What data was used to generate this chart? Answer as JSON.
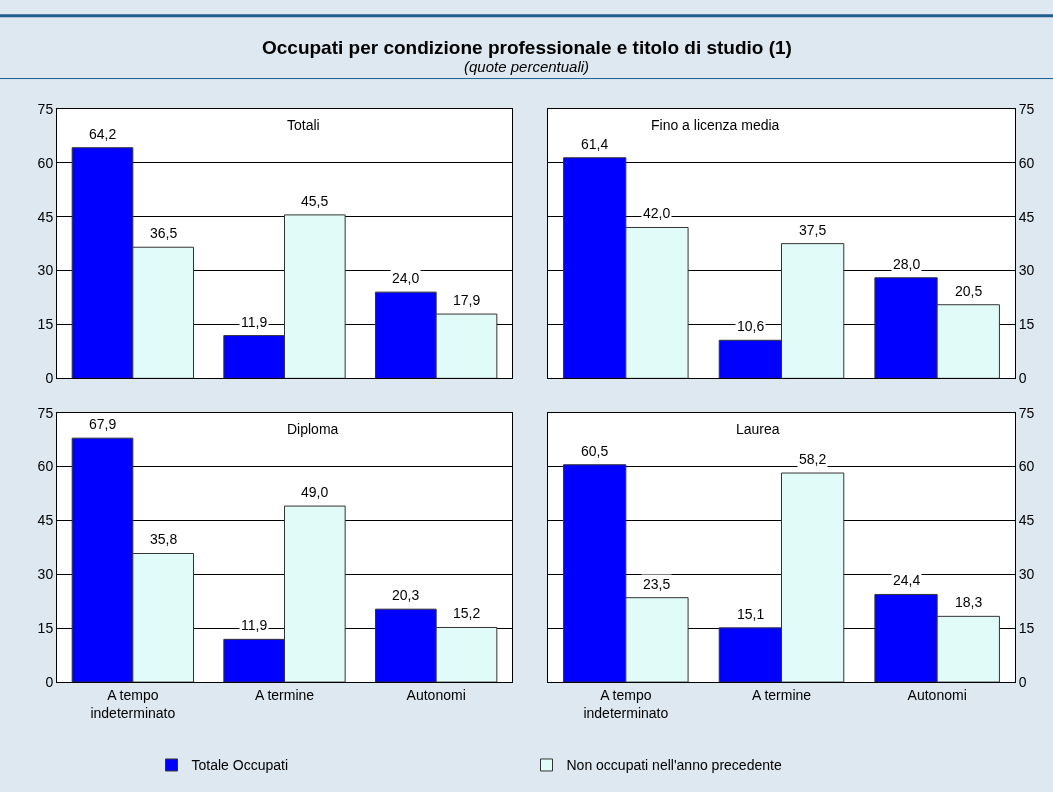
{
  "chart_data": [
    {
      "type": "bar",
      "title": "Totali",
      "annotations": [
        "Occupati per condizione professionale e titolo di studio (1)",
        "(quote percentuali)"
      ],
      "categories": [
        "A tempo\nindeterminato",
        "A termine",
        "Autonomi"
      ],
      "series": [
        {
          "name": "Totale Occupati",
          "color": "#0000ff",
          "values": [
            64.2,
            11.9,
            24.0
          ],
          "value_labels": [
            "64,2",
            "11,9",
            "24,0"
          ]
        },
        {
          "name": "Non occupati nell'anno precedente",
          "color": "#e0fbf8",
          "values": [
            36.5,
            45.5,
            17.9
          ],
          "value_labels": [
            "36,5",
            "45,5",
            "17,9"
          ]
        }
      ],
      "ylim": [
        0,
        75
      ],
      "yticks": [
        0,
        15,
        30,
        45,
        60,
        75
      ],
      "grid": "y",
      "legend": "bottom",
      "tick_labels": "y"
    },
    {
      "type": "bar",
      "title": "Fino a licenza media",
      "categories": [
        "A tempo\nindeterminato",
        "A termine",
        "Autonomi"
      ],
      "series": [
        {
          "name": "Totale Occupati",
          "color": "#0000ff",
          "values": [
            61.4,
            10.6,
            28.0
          ],
          "value_labels": [
            "61,4",
            "10,6",
            "28,0"
          ]
        },
        {
          "name": "Non occupati nell'anno precedente",
          "color": "#e0fbf8",
          "values": [
            42.0,
            37.5,
            20.5
          ],
          "value_labels": [
            "42,0",
            "37,5",
            "20,5"
          ]
        }
      ],
      "ylim": [
        0,
        75
      ],
      "yticks": [
        0,
        15,
        30,
        45,
        60,
        75
      ],
      "grid": "y",
      "legend": "bottom",
      "tick_labels": "y"
    },
    {
      "type": "bar",
      "title": "Diploma",
      "categories": [
        "A tempo\nindeterminato",
        "A termine",
        "Autonomi"
      ],
      "series": [
        {
          "name": "Totale Occupati",
          "color": "#0000ff",
          "values": [
            67.9,
            11.9,
            20.3
          ],
          "value_labels": [
            "67,9",
            "11,9",
            "20,3"
          ]
        },
        {
          "name": "Non occupati nell'anno precedente",
          "color": "#e0fbf8",
          "values": [
            35.8,
            49.0,
            15.2
          ],
          "value_labels": [
            "35,8",
            "49,0",
            "15,2"
          ]
        }
      ],
      "ylim": [
        0,
        75
      ],
      "yticks": [
        0,
        15,
        30,
        45,
        60,
        75
      ],
      "grid": "y",
      "legend": "bottom"
    },
    {
      "type": "bar",
      "title": "Laurea",
      "categories": [
        "A tempo\nindeterminato",
        "A termine",
        "Autonomi"
      ],
      "series": [
        {
          "name": "Totale Occupati",
          "color": "#0000ff",
          "values": [
            60.5,
            15.1,
            24.4
          ],
          "value_labels": [
            "60,5",
            "15,1",
            "24,4"
          ]
        },
        {
          "name": "Non occupati nell'anno precedente",
          "color": "#e0fbf8",
          "values": [
            23.5,
            58.2,
            18.3
          ],
          "value_labels": [
            "23,5",
            "58,2",
            "18,3"
          ]
        }
      ],
      "ylim": [
        0,
        75
      ],
      "yticks": [
        0,
        15,
        30,
        45,
        60,
        75
      ],
      "grid": "y",
      "legend": "bottom"
    }
  ]
}
